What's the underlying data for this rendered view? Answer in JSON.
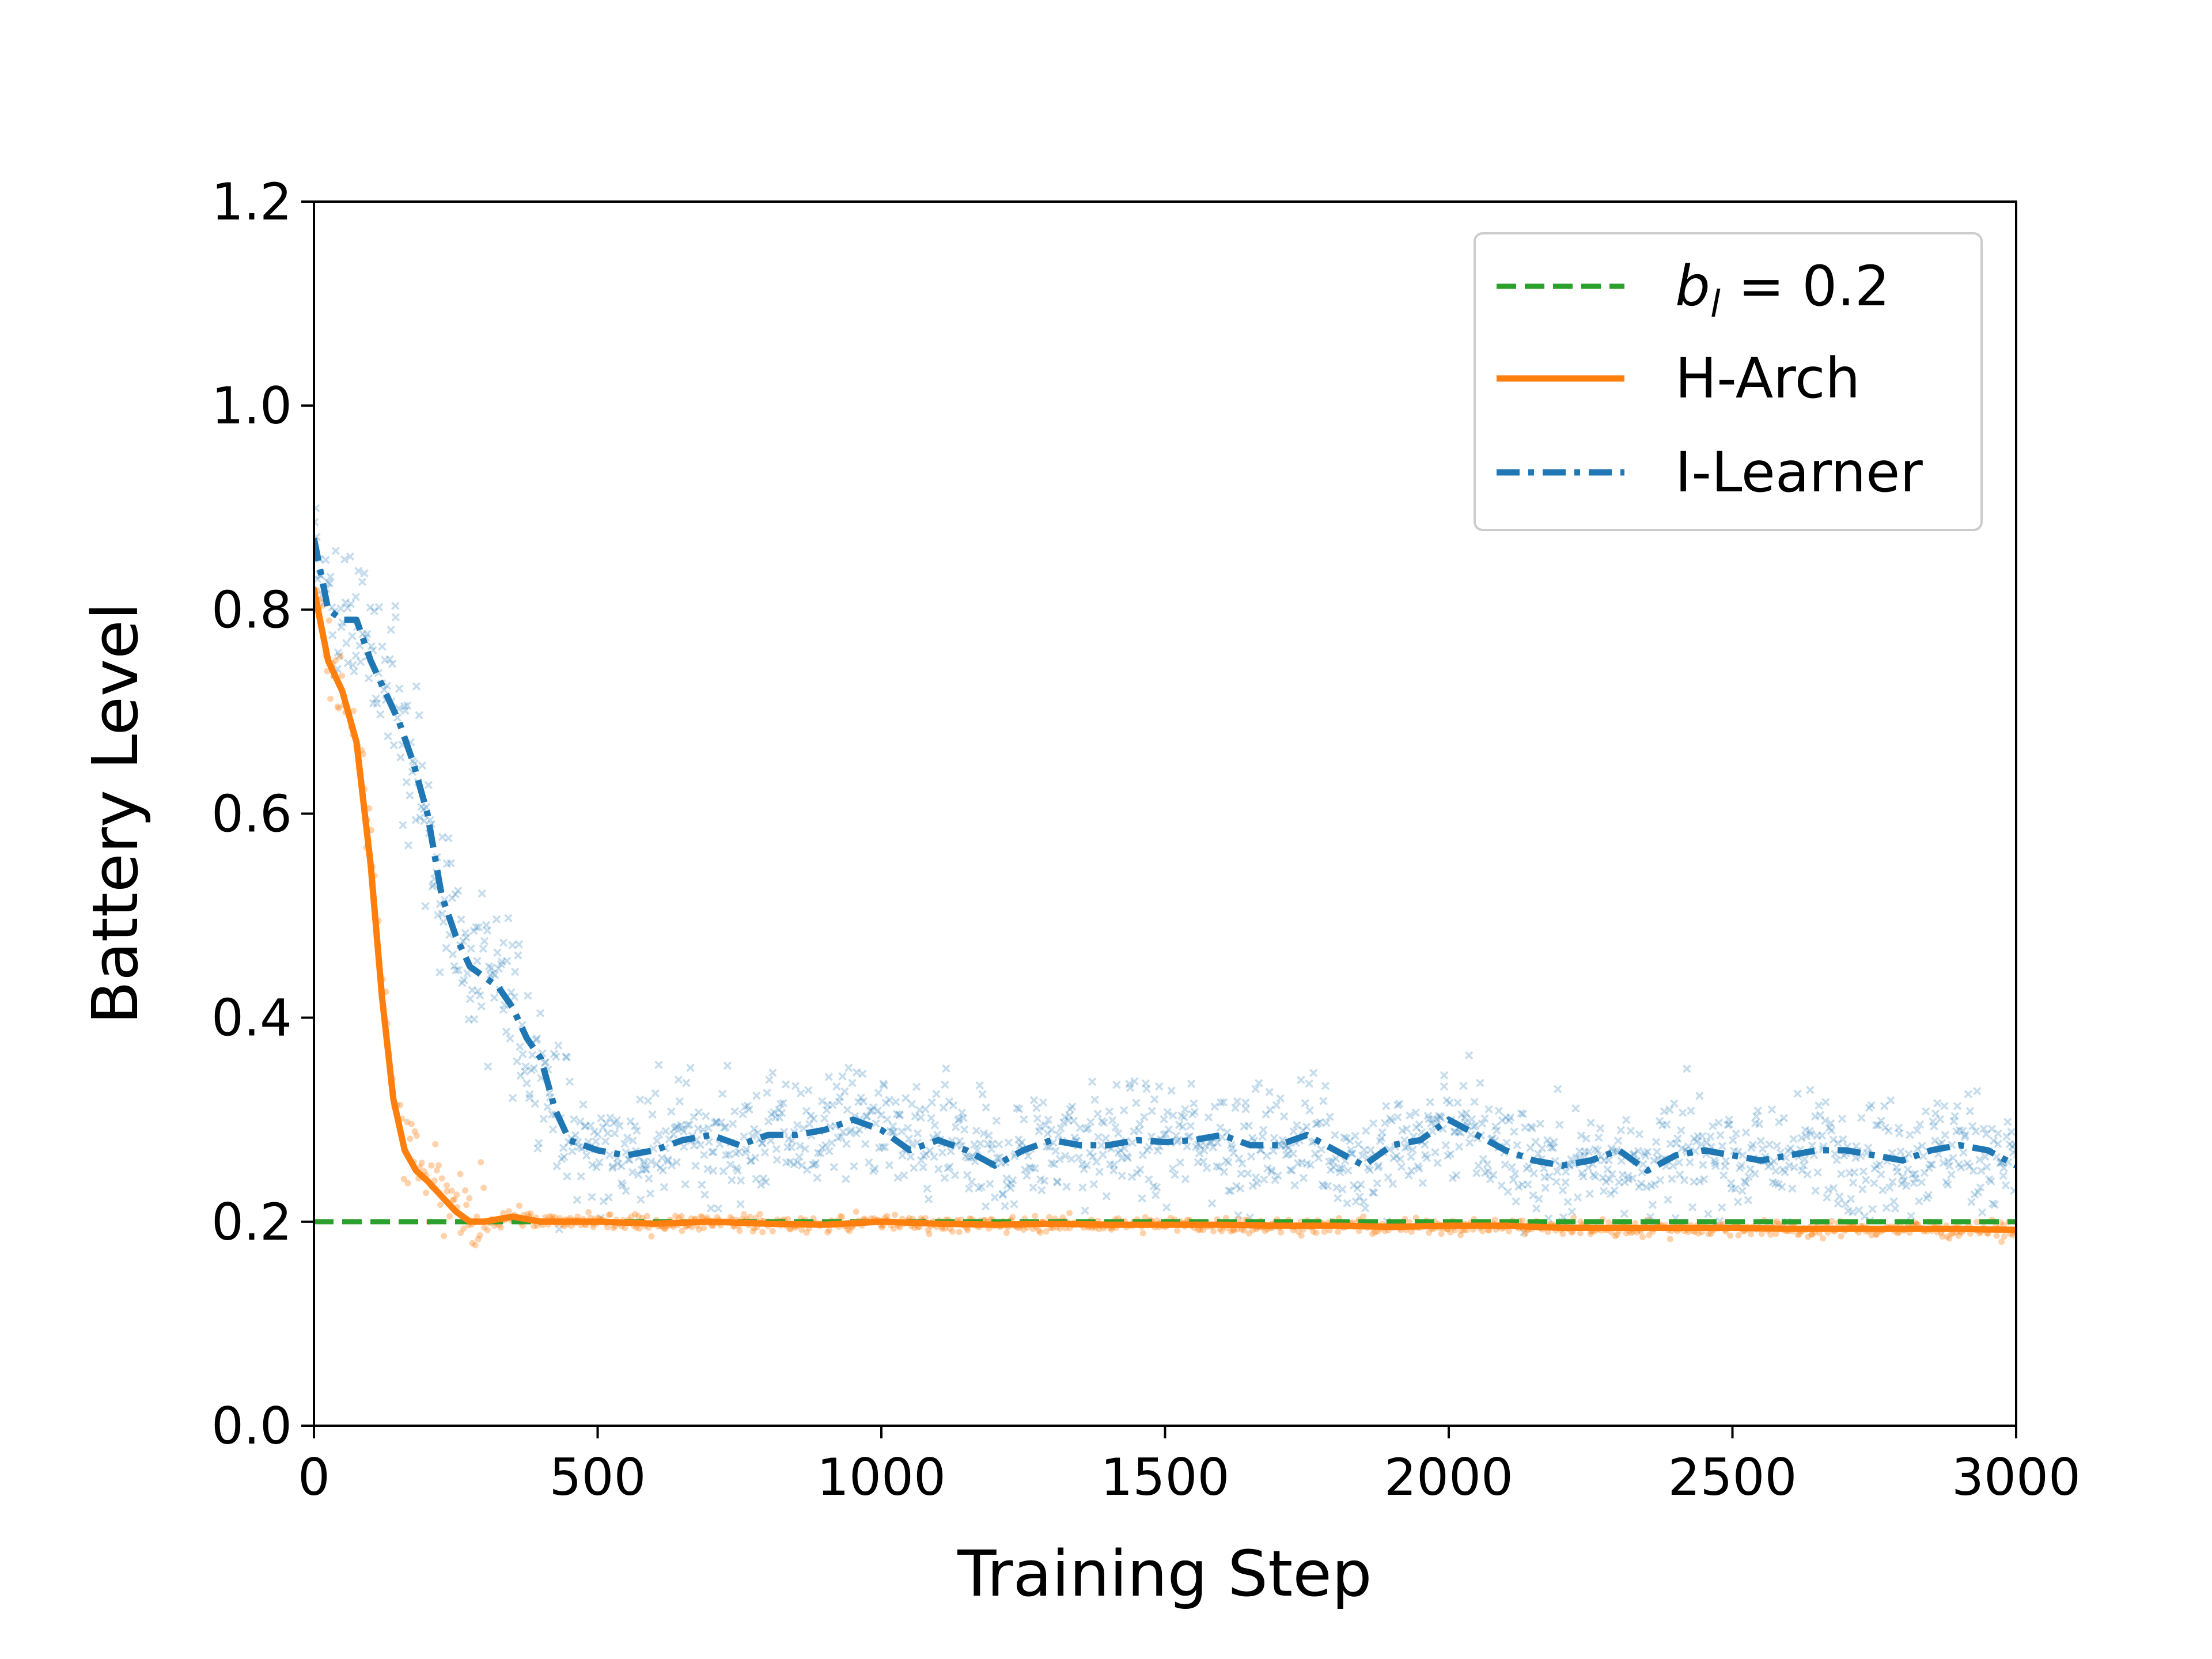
{
  "chart_data": {
    "type": "line",
    "title": "",
    "xlabel": "Training Step",
    "ylabel": "Battery Level",
    "xlim": [
      0,
      3000
    ],
    "ylim": [
      0.0,
      1.2
    ],
    "xticks": [
      0,
      500,
      1000,
      1500,
      2000,
      2500,
      3000
    ],
    "xtick_labels": [
      "0",
      "500",
      "1000",
      "1500",
      "2000",
      "2500",
      "3000"
    ],
    "yticks": [
      0.0,
      0.2,
      0.4,
      0.6,
      0.8,
      1.0,
      1.2
    ],
    "ytick_labels": [
      "0.0",
      "0.2",
      "0.4",
      "0.6",
      "0.8",
      "1.0",
      "1.2"
    ],
    "grid": false,
    "legend_position": "top-right",
    "legend": [
      {
        "key": "threshold",
        "label_base": "b",
        "label_sub": "l",
        "label_rest": " = 0.2"
      },
      {
        "key": "harch",
        "label": "H-Arch"
      },
      {
        "key": "ilearner",
        "label": "I-Learner"
      }
    ],
    "colors": {
      "threshold": "#2ca02c",
      "harch": "#ff7f0e",
      "ilearner": "#1f77b4"
    },
    "threshold": {
      "name": "b_l = 0.2",
      "value": 0.2,
      "style": "dashed"
    },
    "series": [
      {
        "name": "H-Arch",
        "style": "solid",
        "marker": "dot",
        "x": [
          0,
          25,
          50,
          75,
          100,
          120,
          140,
          160,
          180,
          200,
          225,
          250,
          275,
          300,
          350,
          400,
          450,
          500,
          600,
          700,
          800,
          900,
          1000,
          1100,
          1200,
          1300,
          1400,
          1500,
          1600,
          1700,
          1800,
          1900,
          2000,
          2100,
          2200,
          2300,
          2400,
          2500,
          2600,
          2700,
          2800,
          2900,
          3000
        ],
        "y": [
          0.82,
          0.75,
          0.72,
          0.67,
          0.55,
          0.42,
          0.32,
          0.27,
          0.25,
          0.24,
          0.225,
          0.21,
          0.2,
          0.2,
          0.205,
          0.2,
          0.2,
          0.2,
          0.198,
          0.2,
          0.198,
          0.197,
          0.2,
          0.198,
          0.197,
          0.198,
          0.197,
          0.197,
          0.197,
          0.196,
          0.196,
          0.195,
          0.196,
          0.196,
          0.194,
          0.194,
          0.194,
          0.194,
          0.193,
          0.193,
          0.193,
          0.193,
          0.192
        ]
      },
      {
        "name": "I-Learner",
        "style": "dashdot",
        "marker": "x",
        "x": [
          0,
          25,
          50,
          75,
          100,
          125,
          150,
          175,
          200,
          225,
          250,
          275,
          300,
          325,
          350,
          375,
          400,
          425,
          450,
          475,
          500,
          550,
          600,
          650,
          700,
          750,
          800,
          850,
          900,
          950,
          1000,
          1050,
          1100,
          1150,
          1200,
          1250,
          1300,
          1350,
          1400,
          1450,
          1500,
          1550,
          1600,
          1650,
          1700,
          1750,
          1800,
          1850,
          1900,
          1950,
          2000,
          2050,
          2100,
          2150,
          2200,
          2250,
          2300,
          2350,
          2400,
          2450,
          2500,
          2550,
          2600,
          2650,
          2700,
          2750,
          2800,
          2850,
          2900,
          2950,
          3000
        ],
        "y": [
          0.87,
          0.8,
          0.79,
          0.79,
          0.75,
          0.72,
          0.69,
          0.65,
          0.6,
          0.52,
          0.48,
          0.45,
          0.44,
          0.43,
          0.41,
          0.38,
          0.36,
          0.31,
          0.28,
          0.275,
          0.27,
          0.265,
          0.27,
          0.28,
          0.285,
          0.275,
          0.285,
          0.285,
          0.29,
          0.3,
          0.29,
          0.27,
          0.28,
          0.27,
          0.255,
          0.27,
          0.28,
          0.275,
          0.275,
          0.28,
          0.278,
          0.28,
          0.285,
          0.275,
          0.275,
          0.285,
          0.27,
          0.255,
          0.275,
          0.28,
          0.3,
          0.285,
          0.27,
          0.26,
          0.255,
          0.26,
          0.27,
          0.25,
          0.265,
          0.27,
          0.265,
          0.26,
          0.265,
          0.27,
          0.27,
          0.265,
          0.26,
          0.27,
          0.275,
          0.27,
          0.255
        ]
      }
    ]
  }
}
